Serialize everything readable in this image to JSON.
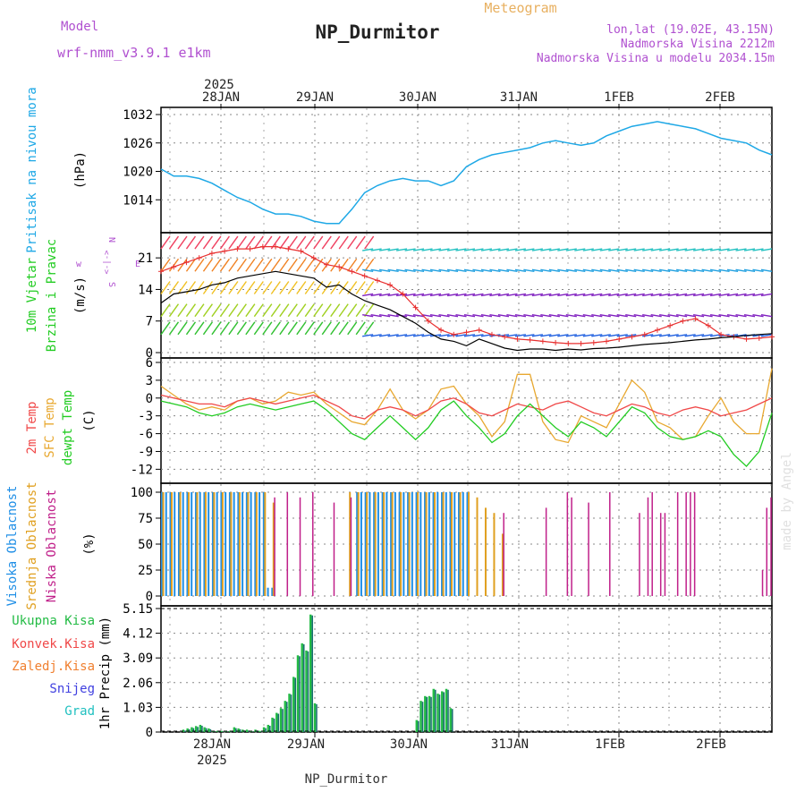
{
  "header": {
    "model_label": "Model",
    "model_value": "wrf-nmm_v3.9.1 e1km",
    "title": "NP_Durmitor",
    "chart_kind": "Meteogram",
    "location": "lon,lat (19.02E, 43.15N)",
    "elevation": "Nadmorska Visina 2212m",
    "model_elevation": "Nadmorska Visina u modelu 2034.15m",
    "watermark": "made by Angel",
    "footer": "NP_Durmitor"
  },
  "colors": {
    "pressure": "#1ea8e6",
    "temp2m": "#f04848",
    "sfc": "#e8a830",
    "dewpt": "#22cc22",
    "high_cloud": "#1e8ee6",
    "mid_cloud": "#e0a020",
    "low_cloud": "#c0208a",
    "precip_total": "#22bb44",
    "precip_conv": "#f04848",
    "precip_frz": "#f08030",
    "precip_snow": "#4040e0",
    "precip_grad": "#20c0c0",
    "wind_speed": "#000000",
    "wind_gust": "#e83030"
  },
  "chart_data": [
    {
      "type": "line",
      "id": "pressure",
      "ylabel_outer": "Pritisak na nivou mora",
      "ylabel": "(hPa)",
      "ylim": [
        1008,
        1032
      ],
      "yticks": [
        "1032",
        "1026",
        "1020",
        "1014"
      ],
      "xlim_hours": [
        0,
        144
      ],
      "top_axis": {
        "year": "2025",
        "tick_labels": [
          "28JAN",
          "29JAN",
          "30JAN",
          "31JAN",
          "1FEB",
          "2FEB"
        ]
      },
      "series": [
        {
          "x": [
            0,
            3,
            6,
            9,
            12,
            15,
            18,
            21,
            24,
            27,
            30,
            33,
            36,
            39,
            42,
            45,
            48,
            51,
            54,
            57,
            60,
            63,
            66,
            69,
            72,
            75,
            78,
            81,
            84,
            87,
            90,
            93,
            96,
            99,
            102,
            105,
            108,
            111,
            114,
            117,
            120,
            123,
            126,
            129,
            132,
            135,
            138,
            141,
            144
          ],
          "values": [
            1020.5,
            1019,
            1019,
            1018.5,
            1017.5,
            1016,
            1014.5,
            1013.5,
            1012,
            1011,
            1011,
            1010.5,
            1009.5,
            1009,
            1009,
            1012,
            1015.5,
            1017,
            1018,
            1018.5,
            1018,
            1018,
            1017,
            1018,
            1021,
            1022.5,
            1023.5,
            1024,
            1024.5,
            1025,
            1026,
            1026.5,
            1026,
            1025.5,
            1026,
            1027.5,
            1028.5,
            1029.5,
            1030,
            1030.5,
            1030,
            1029.5,
            1029,
            1028,
            1027,
            1026.5,
            1026,
            1024.5,
            1023.5
          ]
        }
      ]
    },
    {
      "type": "line",
      "id": "wind",
      "ylabel_outer": [
        "10m Vjetar",
        "Brzina i Pravac"
      ],
      "ylabel": "(m/s)",
      "compass": [
        "w",
        "<-|->",
        "E",
        "N",
        "S"
      ],
      "ylim": [
        0,
        25
      ],
      "yticks": [
        "21",
        "14",
        "7",
        "0"
      ],
      "series": [
        {
          "name": "speed",
          "x": [
            0,
            3,
            6,
            9,
            12,
            15,
            18,
            21,
            24,
            27,
            30,
            33,
            36,
            39,
            42,
            45,
            48,
            51,
            54,
            57,
            60,
            63,
            66,
            69,
            72,
            75,
            78,
            81,
            84,
            87,
            90,
            93,
            96,
            99,
            102,
            105,
            108,
            111,
            114,
            117,
            120,
            123,
            126,
            129,
            132,
            135,
            138,
            141,
            144
          ],
          "values": [
            11,
            13,
            13.5,
            14,
            15,
            15.5,
            16.5,
            17,
            17.5,
            18,
            17.5,
            17,
            16.5,
            14.5,
            15,
            13,
            11.5,
            10.5,
            9.5,
            8,
            6.5,
            4.5,
            3,
            2.5,
            1.5,
            3,
            2,
            1,
            0.5,
            0.8,
            0.8,
            0.5,
            0.8,
            0.6,
            0.9,
            1,
            1.2,
            1.5,
            1.8,
            2,
            2.2,
            2.5,
            2.8,
            3,
            3.3,
            3.5,
            3.8,
            4,
            4.2
          ]
        },
        {
          "name": "gust",
          "x": [
            0,
            3,
            6,
            9,
            12,
            15,
            18,
            21,
            24,
            27,
            30,
            33,
            36,
            39,
            42,
            45,
            48,
            51,
            54,
            57,
            60,
            63,
            66,
            69,
            72,
            75,
            78,
            81,
            84,
            87,
            90,
            93,
            96,
            99,
            102,
            105,
            108,
            111,
            114,
            117,
            120,
            123,
            126,
            129,
            132,
            135,
            138,
            141,
            144
          ],
          "values": [
            18,
            19,
            20,
            21,
            22,
            22.5,
            23,
            23,
            23.5,
            23.5,
            23,
            22.5,
            21,
            19.5,
            19,
            18,
            17,
            16,
            15,
            13,
            10,
            7,
            5,
            4,
            4.5,
            5,
            4,
            3.5,
            3,
            2.8,
            2.5,
            2.2,
            2,
            2,
            2.2,
            2.5,
            3,
            3.5,
            4,
            5,
            6,
            7,
            7.5,
            6,
            4,
            3.5,
            3,
            3.2,
            3.5
          ]
        }
      ]
    },
    {
      "type": "line",
      "id": "temperature",
      "ylabel_outer": [
        "2m Temp",
        "SFC Temp",
        "dewpt Temp"
      ],
      "ylabel": "(C)",
      "ylim": [
        -13,
        6
      ],
      "yticks": [
        "6",
        "3",
        "0",
        "-3",
        "-6",
        "-9",
        "-12"
      ],
      "series": [
        {
          "name": "2m Temp",
          "x": [
            0,
            3,
            6,
            9,
            12,
            15,
            18,
            21,
            24,
            27,
            30,
            33,
            36,
            39,
            42,
            45,
            48,
            51,
            54,
            57,
            60,
            63,
            66,
            69,
            72,
            75,
            78,
            81,
            84,
            87,
            90,
            93,
            96,
            99,
            102,
            105,
            108,
            111,
            114,
            117,
            120,
            123,
            126,
            129,
            132,
            135,
            138,
            141,
            144
          ],
          "values": [
            0.5,
            0,
            -0.5,
            -1,
            -1,
            -1.5,
            -0.5,
            0,
            -0.5,
            -1,
            -0.5,
            0,
            0.5,
            -0.5,
            -1.5,
            -3,
            -3.5,
            -2,
            -1.5,
            -2,
            -3,
            -2,
            -0.5,
            0,
            -1,
            -2.5,
            -3,
            -2,
            -1,
            -1.5,
            -2,
            -1,
            -0.5,
            -1.5,
            -2.5,
            -3,
            -2,
            -1,
            -1.5,
            -2.5,
            -3,
            -2,
            -1.5,
            -2,
            -3,
            -2.5,
            -2,
            -1,
            0
          ]
        },
        {
          "name": "SFC Temp",
          "x": [
            0,
            3,
            6,
            9,
            12,
            15,
            18,
            21,
            24,
            27,
            30,
            33,
            36,
            39,
            42,
            45,
            48,
            51,
            54,
            57,
            60,
            63,
            66,
            69,
            72,
            75,
            78,
            81,
            84,
            87,
            90,
            93,
            96,
            99,
            102,
            105,
            108,
            111,
            114,
            117,
            120,
            123,
            126,
            129,
            132,
            135,
            138,
            141,
            144
          ],
          "values": [
            2,
            0.5,
            -1,
            -2,
            -1.5,
            -2,
            -0.5,
            0,
            -1,
            -0.5,
            1,
            0.5,
            1,
            -1,
            -2.5,
            -4,
            -4.5,
            -2,
            1.5,
            -2,
            -3.5,
            -2,
            1.5,
            2,
            -1,
            -3,
            -6.5,
            -4,
            4,
            4,
            -4,
            -7,
            -7.5,
            -3,
            -4,
            -5,
            -1,
            3,
            1,
            -4,
            -5,
            -7,
            -6.5,
            -3,
            0,
            -4,
            -6,
            -6,
            5
          ]
        },
        {
          "name": "dewpt Temp",
          "x": [
            0,
            3,
            6,
            9,
            12,
            15,
            18,
            21,
            24,
            27,
            30,
            33,
            36,
            39,
            42,
            45,
            48,
            51,
            54,
            57,
            60,
            63,
            66,
            69,
            72,
            75,
            78,
            81,
            84,
            87,
            90,
            93,
            96,
            99,
            102,
            105,
            108,
            111,
            114,
            117,
            120,
            123,
            126,
            129,
            132,
            135,
            138,
            141,
            144
          ],
          "values": [
            -0.5,
            -1,
            -1.5,
            -2.5,
            -3,
            -2.5,
            -1.5,
            -1,
            -1.5,
            -2,
            -1.5,
            -1,
            -0.5,
            -2,
            -4,
            -6,
            -7,
            -5,
            -3,
            -5,
            -7,
            -5,
            -2,
            -0.5,
            -3,
            -5,
            -7.5,
            -6,
            -3,
            -1,
            -3,
            -5,
            -6.5,
            -4,
            -5,
            -6.5,
            -4,
            -1.5,
            -2.5,
            -5,
            -6.5,
            -7,
            -6.5,
            -5.5,
            -6.5,
            -9.5,
            -11.5,
            -9,
            -2.5
          ]
        }
      ]
    },
    {
      "type": "bar",
      "id": "clouds",
      "ylabel_outer": [
        "Visoka Oblacnost",
        "Srednja Oblacnost",
        "Niska Oblacnost"
      ],
      "ylabel": "(%)",
      "ylim": [
        0,
        100
      ],
      "yticks": [
        "100",
        "75",
        "50",
        "25",
        "0"
      ],
      "series": [
        {
          "name": "Visoka Oblacnost",
          "x": [
            0,
            1,
            2,
            3,
            4,
            5,
            6,
            7,
            8,
            9,
            10,
            11,
            12,
            13,
            14,
            15,
            16,
            17,
            18,
            19,
            20,
            21,
            22,
            23,
            24,
            25,
            26,
            46,
            47,
            48,
            49,
            50,
            51,
            52,
            53,
            54,
            55,
            56,
            57,
            58,
            59,
            60,
            61,
            62,
            63,
            64,
            65,
            66,
            67,
            68,
            69,
            70,
            71,
            72
          ],
          "values": [
            100,
            100,
            100,
            100,
            100,
            100,
            100,
            100,
            100,
            100,
            100,
            100,
            100,
            100,
            100,
            100,
            100,
            100,
            100,
            100,
            100,
            100,
            100,
            100,
            100,
            8,
            8,
            100,
            100,
            100,
            100,
            100,
            100,
            100,
            100,
            100,
            100,
            100,
            100,
            100,
            100,
            100,
            100,
            100,
            100,
            100,
            100,
            100,
            100,
            100,
            100,
            100,
            100,
            100
          ]
        },
        {
          "name": "Srednja Oblacnost",
          "x": [
            0,
            2,
            4,
            6,
            8,
            10,
            12,
            14,
            16,
            18,
            20,
            22,
            24,
            26,
            44,
            46,
            48,
            50,
            52,
            54,
            56,
            58,
            60,
            62,
            64,
            66,
            68,
            70,
            72,
            74,
            76,
            78,
            80
          ],
          "values": [
            100,
            100,
            100,
            100,
            100,
            100,
            100,
            100,
            100,
            100,
            100,
            100,
            100,
            90,
            100,
            100,
            100,
            100,
            100,
            100,
            100,
            100,
            100,
            100,
            100,
            100,
            100,
            100,
            100,
            95,
            85,
            80,
            60
          ]
        },
        {
          "name": "Niska Oblacnost",
          "x": [
            26,
            29,
            32,
            35,
            40,
            44,
            80,
            90,
            95,
            96,
            100,
            105,
            112,
            114,
            115,
            117,
            118,
            121,
            123,
            124,
            125,
            141,
            142,
            143
          ],
          "values": [
            95,
            100,
            95,
            100,
            90,
            95,
            80,
            85,
            100,
            95,
            90,
            100,
            80,
            95,
            100,
            80,
            80,
            100,
            100,
            100,
            100,
            25,
            85,
            95
          ]
        }
      ]
    },
    {
      "type": "bar",
      "id": "precip",
      "ylabel": "1hr Precip (mm)",
      "ylim": [
        0,
        5.15
      ],
      "yticks": [
        "5.15",
        "4.12",
        "3.09",
        "2.06",
        "1.03",
        "0"
      ],
      "legend": [
        "Ukupna Kisa",
        "Konvek.Kisa",
        "Zaledj.Kisa",
        "Snijeg",
        "Grad"
      ],
      "bottom_axis": {
        "year": "2025",
        "tick_labels": [
          "28JAN",
          "29JAN",
          "30JAN",
          "31JAN",
          "1FEB",
          "2FEB"
        ]
      },
      "series": [
        {
          "name": "Ukupna Kisa",
          "x": [
            5,
            6,
            7,
            8,
            9,
            10,
            11,
            12,
            13,
            14,
            15,
            16,
            17,
            18,
            19,
            20,
            21,
            22,
            23,
            24,
            25,
            26,
            27,
            28,
            29,
            30,
            31,
            32,
            33,
            34,
            35,
            36,
            60,
            61,
            62,
            63,
            64,
            65,
            66,
            67,
            68,
            69,
            70
          ],
          "values": [
            0.1,
            0.15,
            0.2,
            0.25,
            0.3,
            0.2,
            0.15,
            0.05,
            0.05,
            0.05,
            0.05,
            0.05,
            0.2,
            0.15,
            0.1,
            0.1,
            0.05,
            0.1,
            0.05,
            0.2,
            0.3,
            0.6,
            0.8,
            1.0,
            1.3,
            1.6,
            2.3,
            3.2,
            3.7,
            3.4,
            4.9,
            1.2,
            0.5,
            1.3,
            1.5,
            1.5,
            1.8,
            1.6,
            1.7,
            1.8,
            1.0,
            0,
            0
          ]
        }
      ]
    }
  ]
}
